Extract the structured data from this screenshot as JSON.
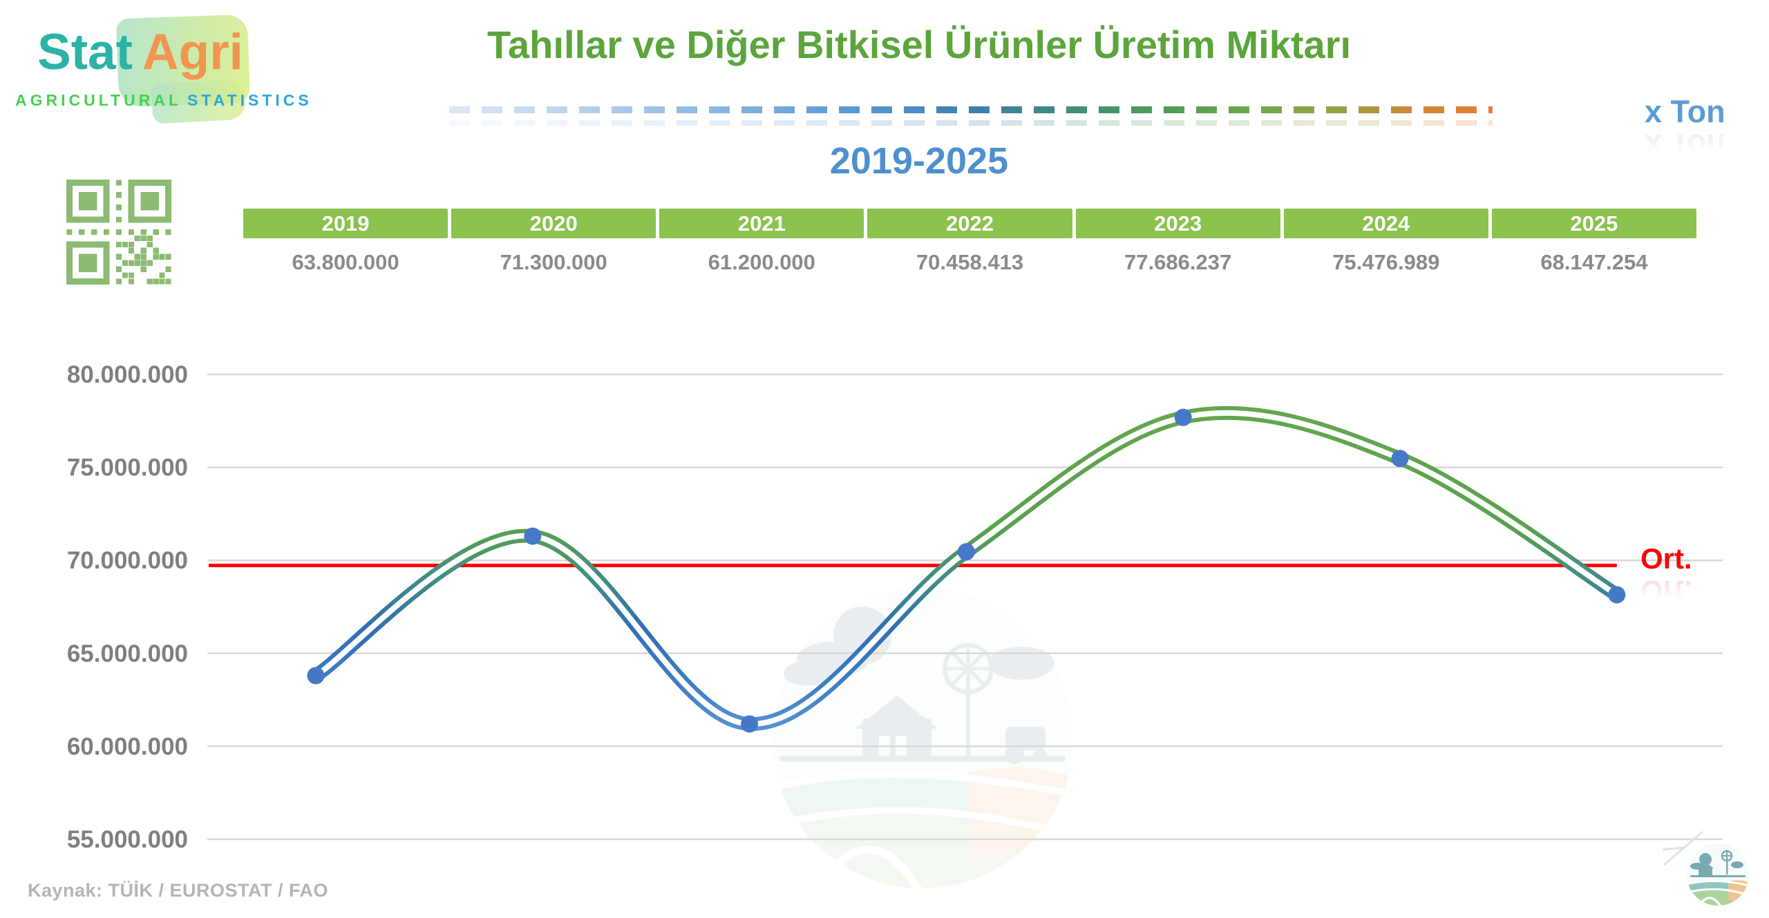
{
  "brand": {
    "name_primary": "Stat",
    "name_secondary": "Agri",
    "tagline_primary": "AGRICULTURAL",
    "tagline_secondary": "STATISTICS"
  },
  "header": {
    "title": "Tahıllar ve Diğer Bitkisel Ürünler Üretim Miktarı",
    "period": "2019-2025",
    "unit_label": "x Ton"
  },
  "table": {
    "years": [
      "2019",
      "2020",
      "2021",
      "2022",
      "2023",
      "2024",
      "2025"
    ],
    "values": [
      "63.800.000",
      "71.300.000",
      "61.200.000",
      "70.458.413",
      "77.686.237",
      "75.476.989",
      "68.147.254"
    ]
  },
  "chart_data": {
    "type": "line",
    "title": "Tahıllar ve Diğer Bitkisel Ürünler Üretim Miktarı",
    "subtitle": "2019-2025",
    "unit": "Ton",
    "categories": [
      "2019",
      "2020",
      "2021",
      "2022",
      "2023",
      "2024",
      "2025"
    ],
    "values": [
      63800000,
      71300000,
      61200000,
      70458413,
      77686237,
      75476989,
      68147254
    ],
    "value_labels": [
      "63.800.000",
      "71.300.000",
      "61.200.000",
      "70.458.413",
      "77.686.237",
      "75.476.989",
      "68.147.254"
    ],
    "ylim": [
      55000000,
      80000000
    ],
    "ytick_step": 5000000,
    "ytick_labels": [
      "80.000.000",
      "75.000.000",
      "70.000.000",
      "65.000.000",
      "60.000.000",
      "55.000.000"
    ],
    "grid": true,
    "legend": "none",
    "line_style": "smooth-double-stroke-gradient",
    "average_line": {
      "label": "Ort.",
      "style": "solid",
      "color": "#FF0000"
    }
  },
  "footer": {
    "source": "Kaynak: TÜİK / EUROSTAT / FAO"
  },
  "colors": {
    "title_green": "#5BA53C",
    "period_blue": "#4E8FD0",
    "unit_blue": "#5B9BD5",
    "table_header_bg": "#8CC24E",
    "table_header_text": "#FFFFFF",
    "table_value_text": "#8A8A8A",
    "axis_label": "#7F7F7F",
    "gridline": "#D9D9D9",
    "average_red": "#FF0000",
    "marker_blue": "#4678C8",
    "line_green": "#67A74E",
    "line_teal": "#3F8A8A",
    "line_blue": "#2F6FB5",
    "line_blue_light": "#5B9BD5",
    "qr_green": "#8CBB72",
    "source_text": "#B5B5B5",
    "brand_teal": "#2AB3A6",
    "brand_orange": "#F0964F",
    "tagline_green": "#45D054",
    "tagline_cyan": "#2DA6DD"
  }
}
